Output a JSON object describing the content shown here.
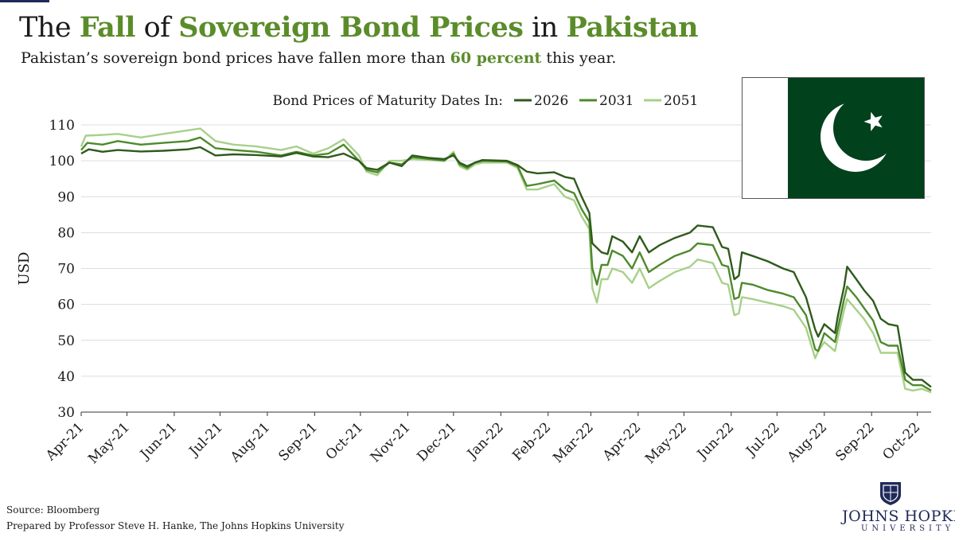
{
  "header": {
    "title_parts": [
      {
        "text": "The ",
        "highlight": false
      },
      {
        "text": "Fall",
        "highlight": true
      },
      {
        "text": " of ",
        "highlight": false
      },
      {
        "text": "Sovereign Bond Prices",
        "highlight": true
      },
      {
        "text": " in ",
        "highlight": false
      },
      {
        "text": "Pakistan",
        "highlight": true
      }
    ],
    "subtitle_parts": [
      {
        "text": "Pakistan’s sovereign bond prices have fallen more than ",
        "highlight": false
      },
      {
        "text": "60 percent",
        "highlight": true
      },
      {
        "text": " this year.",
        "highlight": false
      }
    ]
  },
  "colors": {
    "accent": "#5b8c2a",
    "series_2026": "#2f5a1c",
    "series_2031": "#4d8a2c",
    "series_2051": "#a8d08a",
    "flag_green": "#01411c",
    "jhu_blue": "#1f2a5a"
  },
  "flag": {
    "name": "pakistan-flag",
    "icons": [
      "crescent-icon",
      "star-icon"
    ]
  },
  "footer": {
    "source": "Source:  Bloomberg",
    "prepared": "Prepared by Professor Steve H. Hanke, The Johns Hopkins University"
  },
  "logo": {
    "name": "JOHNS HOPKINS",
    "sub": "UNIVERSITY"
  },
  "chart_data": {
    "type": "line",
    "legend_title": "Bond Prices of Maturity Dates In:",
    "legend_placement": "top",
    "ylabel": "USD",
    "xlabel": "",
    "ylim": [
      30,
      110
    ],
    "yticks": [
      30,
      40,
      50,
      60,
      70,
      80,
      90,
      100,
      110
    ],
    "grid": "horizontal",
    "x_range": [
      "2021-04-01",
      "2022-10-10"
    ],
    "xticks": [
      {
        "date": "2021-04-01",
        "label": "Apr-21"
      },
      {
        "date": "2021-05-01",
        "label": "May-21"
      },
      {
        "date": "2021-06-01",
        "label": "Jun-21"
      },
      {
        "date": "2021-07-01",
        "label": "Jul-21"
      },
      {
        "date": "2021-08-01",
        "label": "Aug-21"
      },
      {
        "date": "2021-09-01",
        "label": "Sep-21"
      },
      {
        "date": "2021-10-01",
        "label": "Oct-21"
      },
      {
        "date": "2021-11-01",
        "label": "Nov-21"
      },
      {
        "date": "2021-12-01",
        "label": "Dec-21"
      },
      {
        "date": "2022-01-01",
        "label": "Jan-22"
      },
      {
        "date": "2022-02-01",
        "label": "Feb-22"
      },
      {
        "date": "2022-03-01",
        "label": "Mar-22"
      },
      {
        "date": "2022-04-01",
        "label": "Apr-22"
      },
      {
        "date": "2022-05-01",
        "label": "May-22"
      },
      {
        "date": "2022-06-01",
        "label": "Jun-22"
      },
      {
        "date": "2022-07-01",
        "label": "Jul-22"
      },
      {
        "date": "2022-08-01",
        "label": "Aug-22"
      },
      {
        "date": "2022-09-01",
        "label": "Sep-22"
      },
      {
        "date": "2022-10-01",
        "label": "Oct-22"
      }
    ],
    "series": [
      {
        "name": "2026",
        "color": "#2f5a1c",
        "points": [
          [
            "2021-04-01",
            102.0
          ],
          [
            "2021-04-06",
            103.2
          ],
          [
            "2021-04-15",
            102.5
          ],
          [
            "2021-04-25",
            103.0
          ],
          [
            "2021-05-10",
            102.6
          ],
          [
            "2021-05-25",
            102.8
          ],
          [
            "2021-06-10",
            103.2
          ],
          [
            "2021-06-18",
            103.8
          ],
          [
            "2021-06-28",
            101.5
          ],
          [
            "2021-07-10",
            101.8
          ],
          [
            "2021-07-25",
            101.6
          ],
          [
            "2021-08-10",
            101.2
          ],
          [
            "2021-08-20",
            102.2
          ],
          [
            "2021-08-31",
            101.2
          ],
          [
            "2021-09-10",
            101.0
          ],
          [
            "2021-09-20",
            102.0
          ],
          [
            "2021-09-30",
            100.0
          ],
          [
            "2021-10-05",
            98.0
          ],
          [
            "2021-10-12",
            97.5
          ],
          [
            "2021-10-20",
            99.5
          ],
          [
            "2021-10-28",
            98.5
          ],
          [
            "2021-11-04",
            101.5
          ],
          [
            "2021-11-15",
            100.8
          ],
          [
            "2021-11-25",
            100.5
          ],
          [
            "2021-12-01",
            101.5
          ],
          [
            "2021-12-05",
            99.5
          ],
          [
            "2021-12-10",
            98.5
          ],
          [
            "2021-12-15",
            99.5
          ],
          [
            "2021-12-20",
            100.2
          ],
          [
            "2022-01-05",
            100.0
          ],
          [
            "2022-01-12",
            98.8
          ],
          [
            "2022-01-18",
            97.0
          ],
          [
            "2022-01-25",
            96.5
          ],
          [
            "2022-02-05",
            96.8
          ],
          [
            "2022-02-12",
            95.5
          ],
          [
            "2022-02-18",
            95.0
          ],
          [
            "2022-02-23",
            90.0
          ],
          [
            "2022-02-28",
            85.5
          ],
          [
            "2022-03-02",
            77.0
          ],
          [
            "2022-03-08",
            74.5
          ],
          [
            "2022-03-12",
            74.0
          ],
          [
            "2022-03-15",
            79.0
          ],
          [
            "2022-03-22",
            77.5
          ],
          [
            "2022-03-28",
            74.5
          ],
          [
            "2022-04-02",
            79.0
          ],
          [
            "2022-04-08",
            74.5
          ],
          [
            "2022-04-15",
            76.5
          ],
          [
            "2022-04-25",
            78.5
          ],
          [
            "2022-05-05",
            80.0
          ],
          [
            "2022-05-10",
            82.0
          ],
          [
            "2022-05-20",
            81.5
          ],
          [
            "2022-05-26",
            76.0
          ],
          [
            "2022-05-30",
            75.5
          ],
          [
            "2022-06-03",
            67.0
          ],
          [
            "2022-06-06",
            68.0
          ],
          [
            "2022-06-08",
            74.5
          ],
          [
            "2022-06-15",
            73.5
          ],
          [
            "2022-06-25",
            72.0
          ],
          [
            "2022-07-05",
            70.0
          ],
          [
            "2022-07-12",
            69.0
          ],
          [
            "2022-07-20",
            62.0
          ],
          [
            "2022-07-26",
            53.0
          ],
          [
            "2022-07-28",
            51.0
          ],
          [
            "2022-08-01",
            54.5
          ],
          [
            "2022-08-08",
            52.0
          ],
          [
            "2022-08-10",
            57.0
          ],
          [
            "2022-08-14",
            65.0
          ],
          [
            "2022-08-16",
            70.5
          ],
          [
            "2022-08-22",
            67.0
          ],
          [
            "2022-08-27",
            64.0
          ],
          [
            "2022-09-02",
            61.0
          ],
          [
            "2022-09-07",
            56.0
          ],
          [
            "2022-09-12",
            54.5
          ],
          [
            "2022-09-18",
            54.0
          ],
          [
            "2022-09-23",
            41.0
          ],
          [
            "2022-09-28",
            39.0
          ],
          [
            "2022-10-04",
            39.0
          ],
          [
            "2022-10-10",
            37.0
          ]
        ]
      },
      {
        "name": "2031",
        "color": "#4d8a2c",
        "points": [
          [
            "2021-04-01",
            103.0
          ],
          [
            "2021-04-05",
            105.0
          ],
          [
            "2021-04-15",
            104.5
          ],
          [
            "2021-04-25",
            105.5
          ],
          [
            "2021-05-10",
            104.5
          ],
          [
            "2021-05-25",
            105.0
          ],
          [
            "2021-06-10",
            105.5
          ],
          [
            "2021-06-18",
            106.5
          ],
          [
            "2021-06-28",
            103.5
          ],
          [
            "2021-07-10",
            103.0
          ],
          [
            "2021-07-25",
            102.5
          ],
          [
            "2021-08-10",
            101.5
          ],
          [
            "2021-08-20",
            102.5
          ],
          [
            "2021-08-31",
            101.5
          ],
          [
            "2021-09-10",
            102.0
          ],
          [
            "2021-09-20",
            104.5
          ],
          [
            "2021-09-30",
            100.0
          ],
          [
            "2021-10-05",
            97.5
          ],
          [
            "2021-10-12",
            96.8
          ],
          [
            "2021-10-20",
            99.5
          ],
          [
            "2021-10-28",
            99.0
          ],
          [
            "2021-11-04",
            101.0
          ],
          [
            "2021-11-15",
            100.5
          ],
          [
            "2021-11-25",
            100.0
          ],
          [
            "2021-12-01",
            102.0
          ],
          [
            "2021-12-05",
            99.0
          ],
          [
            "2021-12-10",
            98.0
          ],
          [
            "2021-12-15",
            99.5
          ],
          [
            "2021-12-20",
            100.0
          ],
          [
            "2022-01-05",
            99.8
          ],
          [
            "2022-01-12",
            98.5
          ],
          [
            "2022-01-18",
            93.0
          ],
          [
            "2022-01-25",
            93.5
          ],
          [
            "2022-02-05",
            94.5
          ],
          [
            "2022-02-12",
            92.0
          ],
          [
            "2022-02-18",
            91.0
          ],
          [
            "2022-02-23",
            86.5
          ],
          [
            "2022-02-28",
            83.0
          ],
          [
            "2022-03-02",
            70.0
          ],
          [
            "2022-03-05",
            65.5
          ],
          [
            "2022-03-08",
            71.0
          ],
          [
            "2022-03-12",
            71.0
          ],
          [
            "2022-03-15",
            75.0
          ],
          [
            "2022-03-22",
            73.5
          ],
          [
            "2022-03-28",
            70.0
          ],
          [
            "2022-04-02",
            74.5
          ],
          [
            "2022-04-08",
            69.0
          ],
          [
            "2022-04-15",
            71.0
          ],
          [
            "2022-04-25",
            73.5
          ],
          [
            "2022-05-05",
            75.0
          ],
          [
            "2022-05-10",
            77.0
          ],
          [
            "2022-05-20",
            76.5
          ],
          [
            "2022-05-26",
            71.0
          ],
          [
            "2022-05-30",
            70.5
          ],
          [
            "2022-06-03",
            61.5
          ],
          [
            "2022-06-06",
            62.0
          ],
          [
            "2022-06-08",
            66.0
          ],
          [
            "2022-06-15",
            65.5
          ],
          [
            "2022-06-25",
            64.0
          ],
          [
            "2022-07-05",
            63.0
          ],
          [
            "2022-07-12",
            62.0
          ],
          [
            "2022-07-20",
            57.0
          ],
          [
            "2022-07-26",
            47.5
          ],
          [
            "2022-07-28",
            47.0
          ],
          [
            "2022-08-01",
            52.0
          ],
          [
            "2022-08-08",
            49.5
          ],
          [
            "2022-08-10",
            53.5
          ],
          [
            "2022-08-14",
            61.5
          ],
          [
            "2022-08-16",
            65.0
          ],
          [
            "2022-08-22",
            62.0
          ],
          [
            "2022-08-27",
            59.0
          ],
          [
            "2022-09-02",
            55.5
          ],
          [
            "2022-09-07",
            49.5
          ],
          [
            "2022-09-12",
            48.5
          ],
          [
            "2022-09-18",
            48.5
          ],
          [
            "2022-09-23",
            39.0
          ],
          [
            "2022-09-28",
            37.5
          ],
          [
            "2022-10-04",
            37.5
          ],
          [
            "2022-10-10",
            36.0
          ]
        ]
      },
      {
        "name": "2051",
        "color": "#a8d08a",
        "points": [
          [
            "2021-04-01",
            104.0
          ],
          [
            "2021-04-04",
            107.0
          ],
          [
            "2021-04-15",
            107.2
          ],
          [
            "2021-04-25",
            107.5
          ],
          [
            "2021-05-10",
            106.5
          ],
          [
            "2021-05-25",
            107.5
          ],
          [
            "2021-06-10",
            108.5
          ],
          [
            "2021-06-18",
            109.0
          ],
          [
            "2021-06-28",
            105.5
          ],
          [
            "2021-07-10",
            104.5
          ],
          [
            "2021-07-25",
            104.0
          ],
          [
            "2021-08-10",
            103.0
          ],
          [
            "2021-08-20",
            104.0
          ],
          [
            "2021-08-31",
            102.0
          ],
          [
            "2021-09-10",
            103.5
          ],
          [
            "2021-09-20",
            106.0
          ],
          [
            "2021-09-30",
            101.5
          ],
          [
            "2021-10-05",
            97.0
          ],
          [
            "2021-10-12",
            96.0
          ],
          [
            "2021-10-20",
            100.0
          ],
          [
            "2021-10-28",
            100.0
          ],
          [
            "2021-11-04",
            100.5
          ],
          [
            "2021-11-15",
            100.2
          ],
          [
            "2021-11-25",
            100.0
          ],
          [
            "2021-12-01",
            102.5
          ],
          [
            "2021-12-05",
            98.5
          ],
          [
            "2021-12-10",
            97.5
          ],
          [
            "2021-12-15",
            99.0
          ],
          [
            "2021-12-20",
            99.5
          ],
          [
            "2022-01-05",
            99.5
          ],
          [
            "2022-01-12",
            98.0
          ],
          [
            "2022-01-18",
            92.0
          ],
          [
            "2022-01-25",
            92.0
          ],
          [
            "2022-02-05",
            93.5
          ],
          [
            "2022-02-12",
            90.0
          ],
          [
            "2022-02-18",
            89.0
          ],
          [
            "2022-02-23",
            84.5
          ],
          [
            "2022-02-28",
            81.0
          ],
          [
            "2022-03-02",
            64.5
          ],
          [
            "2022-03-05",
            60.5
          ],
          [
            "2022-03-08",
            67.0
          ],
          [
            "2022-03-12",
            67.0
          ],
          [
            "2022-03-15",
            70.0
          ],
          [
            "2022-03-22",
            69.0
          ],
          [
            "2022-03-28",
            66.0
          ],
          [
            "2022-04-02",
            70.0
          ],
          [
            "2022-04-08",
            64.5
          ],
          [
            "2022-04-15",
            66.5
          ],
          [
            "2022-04-25",
            69.0
          ],
          [
            "2022-05-05",
            70.5
          ],
          [
            "2022-05-10",
            72.5
          ],
          [
            "2022-05-20",
            71.5
          ],
          [
            "2022-05-26",
            66.0
          ],
          [
            "2022-05-30",
            65.5
          ],
          [
            "2022-06-03",
            57.0
          ],
          [
            "2022-06-06",
            57.5
          ],
          [
            "2022-06-08",
            62.0
          ],
          [
            "2022-06-15",
            61.5
          ],
          [
            "2022-06-25",
            60.5
          ],
          [
            "2022-07-05",
            59.5
          ],
          [
            "2022-07-12",
            58.5
          ],
          [
            "2022-07-20",
            53.5
          ],
          [
            "2022-07-26",
            45.0
          ],
          [
            "2022-07-28",
            47.0
          ],
          [
            "2022-08-01",
            49.5
          ],
          [
            "2022-08-08",
            47.0
          ],
          [
            "2022-08-10",
            51.0
          ],
          [
            "2022-08-14",
            58.5
          ],
          [
            "2022-08-16",
            61.5
          ],
          [
            "2022-08-22",
            58.5
          ],
          [
            "2022-08-27",
            56.0
          ],
          [
            "2022-09-02",
            52.0
          ],
          [
            "2022-09-07",
            46.5
          ],
          [
            "2022-09-12",
            46.5
          ],
          [
            "2022-09-18",
            46.5
          ],
          [
            "2022-09-23",
            36.5
          ],
          [
            "2022-09-28",
            36.0
          ],
          [
            "2022-10-04",
            36.5
          ],
          [
            "2022-10-10",
            35.5
          ]
        ]
      }
    ]
  }
}
